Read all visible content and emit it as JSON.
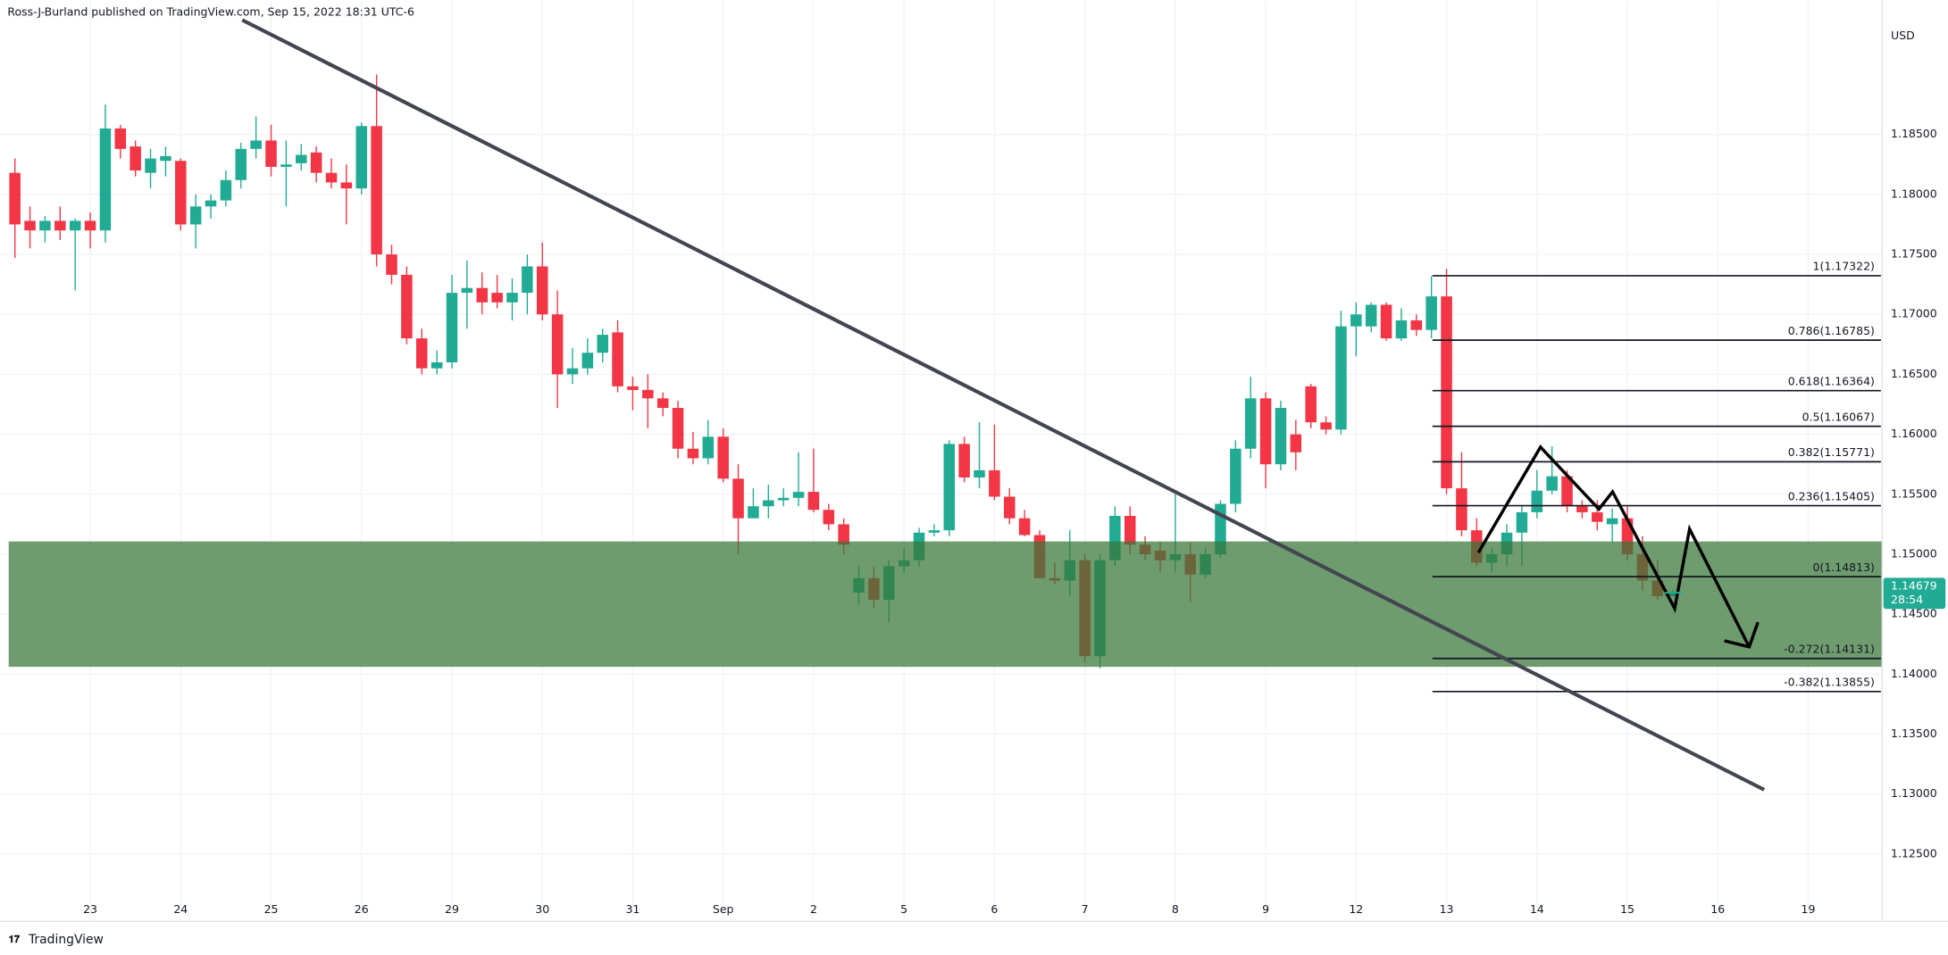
{
  "header": {
    "publisher": "Ross-J-Burland published on TradingView.com, Sep 15, 2022 18:31 UTC-6",
    "logo": "TradingView"
  },
  "chart_data": {
    "type": "candlestick",
    "currency": "USD",
    "categories": [
      null,
      null,
      null,
      null,
      null,
      "23",
      null,
      null,
      null,
      null,
      null,
      "24",
      null,
      null,
      null,
      null,
      null,
      "25",
      null,
      null,
      null,
      null,
      null,
      "26",
      null,
      null,
      null,
      null,
      null,
      "29",
      null,
      null,
      null,
      null,
      null,
      "30",
      null,
      null,
      null,
      null,
      null,
      "31",
      null,
      null,
      null,
      null,
      null,
      "Sep",
      null,
      null,
      null,
      null,
      null,
      "2",
      null,
      null,
      null,
      null,
      null,
      "5",
      null,
      null,
      null,
      null,
      null,
      "6",
      null,
      null,
      null,
      null,
      null,
      "7",
      null,
      null,
      null,
      null,
      null,
      "8",
      null,
      null,
      null,
      null,
      null,
      "9",
      null,
      null,
      null,
      null,
      null,
      "12",
      null,
      null,
      null,
      null,
      null,
      "13",
      null,
      null,
      null,
      null,
      null,
      "14",
      null,
      null,
      null,
      null,
      null,
      "15",
      null,
      null,
      null,
      null,
      null,
      "16",
      null,
      null,
      null,
      null,
      null,
      "19",
      null,
      null,
      null,
      null
    ],
    "open": [
      1.1818,
      1.1778,
      1.177,
      1.1778,
      1.177,
      1.1778,
      1.177,
      1.1855,
      1.184,
      1.1818,
      1.1828,
      1.1828,
      1.1775,
      1.179,
      1.1795,
      1.1812,
      1.1838,
      1.1845,
      1.1823,
      1.1826,
      1.1835,
      1.1818,
      1.181,
      1.1805,
      1.1857,
      1.175,
      1.1733,
      1.168,
      1.1655,
      1.166,
      1.1718,
      1.1722,
      1.1718,
      1.171,
      1.1718,
      1.174,
      1.17,
      1.165,
      1.1655,
      1.1668,
      1.1685,
      1.164,
      1.1637,
      1.163,
      1.1622,
      1.1588,
      1.158,
      1.1598,
      1.1563,
      1.153,
      1.154,
      1.1545,
      1.1547,
      1.1552,
      1.1537,
      1.1525,
      1.1468,
      1.148,
      1.1462,
      1.149,
      1.1495,
      1.1518,
      1.152,
      1.1592,
      1.1564,
      1.157,
      1.1548,
      1.153,
      1.1516,
      1.148,
      1.1478,
      1.1495,
      1.1415,
      1.1495,
      1.1532,
      1.1508,
      1.1503,
      1.1495,
      1.15,
      1.1483,
      1.15,
      1.1542,
      1.1588,
      1.163,
      1.1575,
      1.16,
      1.164,
      1.161,
      1.1604,
      1.169,
      1.169,
      1.1708,
      1.168,
      1.1695,
      1.1687,
      1.1715,
      1.1555,
      1.152,
      1.1493,
      1.15,
      1.1518,
      1.1535,
      1.1553,
      1.1565,
      1.154,
      1.1535,
      1.1525,
      1.153,
      1.15,
      1.1478,
      1.1465,
      null,
      null,
      null,
      null,
      null,
      null,
      null,
      null,
      null,
      null,
      null,
      null,
      null
    ],
    "high": [
      1.183,
      1.179,
      1.1782,
      1.179,
      1.178,
      1.1785,
      1.1875,
      1.1858,
      1.1845,
      1.1838,
      1.184,
      1.183,
      1.18,
      1.18,
      1.182,
      1.1843,
      1.1865,
      1.1858,
      1.1845,
      1.1842,
      1.184,
      1.183,
      1.1825,
      1.186,
      1.19,
      1.1758,
      1.174,
      1.1688,
      1.167,
      1.1733,
      1.1745,
      1.1735,
      1.1733,
      1.173,
      1.175,
      1.176,
      1.172,
      1.1672,
      1.168,
      1.1688,
      1.1695,
      1.1648,
      1.165,
      1.1635,
      1.1628,
      1.1602,
      1.1612,
      1.1605,
      1.1575,
      1.1555,
      1.1558,
      1.1555,
      1.1585,
      1.1588,
      1.1542,
      1.153,
      1.149,
      1.149,
      1.1495,
      1.1505,
      1.1522,
      1.1525,
      1.1595,
      1.1598,
      1.161,
      1.1608,
      1.1555,
      1.1537,
      1.152,
      1.1493,
      1.152,
      1.15,
      1.15,
      1.154,
      1.154,
      1.1515,
      1.151,
      1.155,
      1.151,
      1.1505,
      1.1545,
      1.1595,
      1.1648,
      1.1635,
      1.1628,
      1.1612,
      1.1642,
      1.1615,
      1.1703,
      1.171,
      1.171,
      1.171,
      1.1705,
      1.17,
      1.1732,
      1.1738,
      1.1585,
      1.153,
      1.1505,
      1.1525,
      1.154,
      1.157,
      1.159,
      1.157,
      1.1545,
      1.1545,
      1.1538,
      1.154,
      1.1515,
      1.1495,
      1.147,
      null,
      null,
      null,
      null,
      null,
      null,
      null,
      null,
      null,
      null,
      null,
      null,
      null
    ],
    "low": [
      1.1747,
      1.1755,
      1.176,
      1.1762,
      1.172,
      1.1755,
      1.176,
      1.183,
      1.1815,
      1.1805,
      1.1815,
      1.177,
      1.1755,
      1.178,
      1.179,
      1.1805,
      1.183,
      1.1815,
      1.179,
      1.182,
      1.181,
      1.1805,
      1.1775,
      1.18,
      1.174,
      1.1725,
      1.1675,
      1.165,
      1.165,
      1.1655,
      1.1688,
      1.17,
      1.1705,
      1.1695,
      1.17,
      1.1695,
      1.1622,
      1.1642,
      1.165,
      1.166,
      1.1635,
      1.162,
      1.1605,
      1.1615,
      1.158,
      1.1575,
      1.1575,
      1.156,
      1.15,
      1.153,
      1.153,
      1.154,
      1.154,
      1.1535,
      1.152,
      1.15,
      1.1458,
      1.1455,
      1.1443,
      1.1485,
      1.149,
      1.1515,
      1.1515,
      1.156,
      1.1555,
      1.1545,
      1.1525,
      1.1515,
      1.148,
      1.1475,
      1.1465,
      1.141,
      1.1405,
      1.149,
      1.15,
      1.1495,
      1.1485,
      1.1485,
      1.146,
      1.148,
      1.1497,
      1.1535,
      1.158,
      1.1555,
      1.157,
      1.157,
      1.1605,
      1.16,
      1.16,
      1.1665,
      1.1685,
      1.1678,
      1.1678,
      1.1682,
      1.168,
      1.155,
      1.1515,
      1.149,
      1.1485,
      1.149,
      1.149,
      1.153,
      1.155,
      1.1535,
      1.153,
      1.152,
      1.151,
      1.1495,
      1.147,
      1.1462,
      1.1465,
      null,
      null,
      null,
      null,
      null,
      null,
      null,
      null,
      null,
      null,
      null,
      null,
      null
    ],
    "close": [
      1.1775,
      1.177,
      1.1778,
      1.177,
      1.1778,
      1.177,
      1.1855,
      1.1838,
      1.182,
      1.183,
      1.1832,
      1.1775,
      1.179,
      1.1795,
      1.1812,
      1.1838,
      1.1845,
      1.1823,
      1.1825,
      1.1833,
      1.1818,
      1.181,
      1.1805,
      1.1857,
      1.175,
      1.1733,
      1.168,
      1.1655,
      1.166,
      1.1718,
      1.1722,
      1.171,
      1.171,
      1.1718,
      1.174,
      1.17,
      1.165,
      1.1655,
      1.1668,
      1.1683,
      1.164,
      1.1637,
      1.163,
      1.1622,
      1.1588,
      1.158,
      1.1598,
      1.1563,
      1.153,
      1.154,
      1.1545,
      1.1547,
      1.1552,
      1.1537,
      1.1525,
      1.1508,
      1.148,
      1.1462,
      1.149,
      1.1495,
      1.1518,
      1.152,
      1.1592,
      1.1564,
      1.157,
      1.1548,
      1.153,
      1.1516,
      1.148,
      1.1478,
      1.1495,
      1.1415,
      1.1495,
      1.1532,
      1.1508,
      1.15,
      1.1495,
      1.15,
      1.1483,
      1.15,
      1.1542,
      1.1588,
      1.163,
      1.1575,
      1.1622,
      1.1585,
      1.161,
      1.1604,
      1.169,
      1.17,
      1.1708,
      1.168,
      1.1695,
      1.1687,
      1.1715,
      1.1555,
      1.152,
      1.1493,
      1.15,
      1.1518,
      1.1535,
      1.1553,
      1.1565,
      1.154,
      1.1535,
      1.1527,
      1.153,
      1.15,
      1.1478,
      1.1465,
      1.1468,
      null,
      null,
      null,
      null,
      null,
      null,
      null,
      null,
      null,
      null,
      null,
      null,
      null
    ],
    "up_color": "#22ab94",
    "down_color": "#f23645",
    "ylim": [
      1.1196,
      1.1962
    ],
    "yticks": [
      {
        "value": 1.185,
        "label": "1.18500"
      },
      {
        "value": 1.18,
        "label": "1.18000"
      },
      {
        "value": 1.175,
        "label": "1.17500"
      },
      {
        "value": 1.17,
        "label": "1.17000"
      },
      {
        "value": 1.165,
        "label": "1.16500"
      },
      {
        "value": 1.16,
        "label": "1.16000"
      },
      {
        "value": 1.155,
        "label": "1.15500"
      },
      {
        "value": 1.15,
        "label": "1.15000"
      },
      {
        "value": 1.145,
        "label": "1.14500"
      },
      {
        "value": 1.14,
        "label": "1.14000"
      },
      {
        "value": 1.135,
        "label": "1.13500"
      },
      {
        "value": 1.13,
        "label": "1.13000"
      },
      {
        "value": 1.125,
        "label": "1.12500"
      }
    ],
    "grid": true,
    "fib_levels": [
      {
        "value": 1.17322,
        "label": "1(1.17322)"
      },
      {
        "value": 1.16785,
        "label": "0.786(1.16785)"
      },
      {
        "value": 1.16364,
        "label": "0.618(1.16364)"
      },
      {
        "value": 1.16067,
        "label": "0.5(1.16067)"
      },
      {
        "value": 1.15771,
        "label": "0.382(1.15771)"
      },
      {
        "value": 1.15405,
        "label": "0.236(1.15405)"
      },
      {
        "value": 1.14813,
        "label": "0(1.14813)"
      },
      {
        "value": 1.14131,
        "label": "-0.272(1.14131)"
      },
      {
        "value": 1.13855,
        "label": "-0.382(1.13855)"
      }
    ],
    "last_price": 1.14679,
    "countdown": "28:54"
  }
}
